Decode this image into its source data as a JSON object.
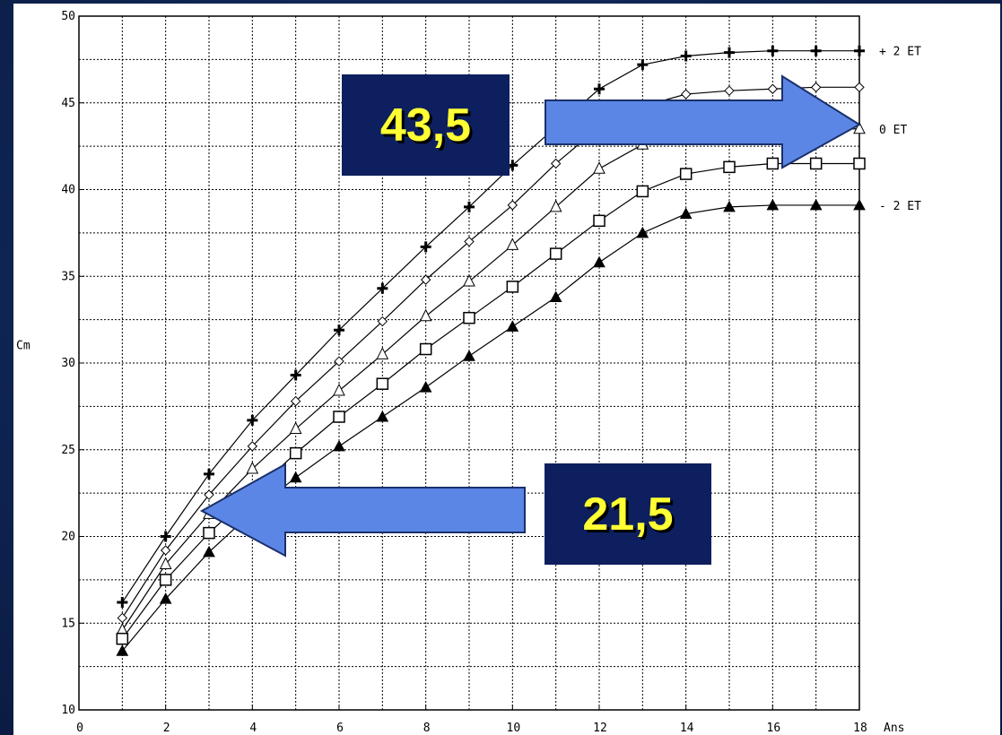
{
  "chart_data": {
    "type": "line",
    "title": "",
    "xlabel": "Ans",
    "ylabel": "Cm",
    "xlim": [
      0,
      18
    ],
    "ylim": [
      10,
      50
    ],
    "xticks": [
      "0",
      "2",
      "4",
      "6",
      "8",
      "10",
      "12",
      "14",
      "16",
      "18"
    ],
    "yticks": [
      "10",
      "15",
      "20",
      "25",
      "30",
      "35",
      "40",
      "45",
      "50"
    ],
    "grid": true,
    "x": [
      1,
      2,
      3,
      4,
      5,
      6,
      7,
      8,
      9,
      10,
      11,
      12,
      13,
      14,
      15,
      16,
      17,
      18
    ],
    "series": [
      {
        "name": "+ 2 ET",
        "marker": "plus",
        "values": [
          16.2,
          20.0,
          23.6,
          26.7,
          29.3,
          31.9,
          34.3,
          36.7,
          39.0,
          41.4,
          43.6,
          45.8,
          47.2,
          47.7,
          47.9,
          48.0,
          48.0,
          48.0
        ]
      },
      {
        "name": "",
        "marker": "diamond",
        "values": [
          15.3,
          19.2,
          22.4,
          25.2,
          27.8,
          30.1,
          32.4,
          34.8,
          37.0,
          39.1,
          41.5,
          43.6,
          44.8,
          45.5,
          45.7,
          45.8,
          45.9,
          45.9
        ]
      },
      {
        "name": "0 ET",
        "marker": "triangle-open",
        "values": [
          14.6,
          18.4,
          21.3,
          23.9,
          26.2,
          28.4,
          30.5,
          32.7,
          34.7,
          36.8,
          39.0,
          41.2,
          42.6,
          43.3,
          43.5,
          43.5,
          43.5,
          43.5
        ]
      },
      {
        "name": "",
        "marker": "square",
        "values": [
          14.1,
          17.5,
          20.2,
          22.5,
          24.8,
          26.9,
          28.8,
          30.8,
          32.6,
          34.4,
          36.3,
          38.2,
          39.9,
          40.9,
          41.3,
          41.5,
          41.5,
          41.5
        ]
      },
      {
        "name": "- 2 ET",
        "marker": "triangle-filled",
        "values": [
          13.4,
          16.4,
          19.1,
          21.4,
          23.4,
          25.2,
          26.9,
          28.6,
          30.4,
          32.1,
          33.8,
          35.8,
          37.5,
          38.6,
          39.0,
          39.1,
          39.1,
          39.1
        ]
      }
    ]
  },
  "annotations": {
    "upper_value": "43,5",
    "lower_value": "21,5"
  },
  "colors": {
    "background": "#0f2452",
    "callout_bg": "#0d1f5e",
    "callout_text": "#ffff33",
    "arrow_fill": "#5b86e6"
  }
}
